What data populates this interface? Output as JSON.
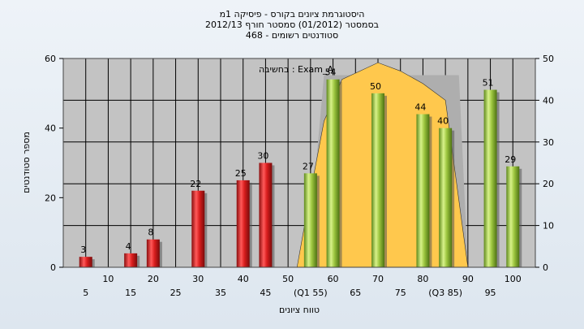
{
  "chart_data": {
    "type": "bar",
    "title_lines": [
      "היסטוגרמת ציונים בקורס - פיסיקה 1מ",
      "בסמסטר  (01/2012)  סמסטר חורף 2012/13",
      "סטודנטים רשומים - 468"
    ],
    "xlabel": "טווח ציונים",
    "ylabel": "מספר סטודנטים",
    "y_left_lim": [
      0,
      60
    ],
    "y_left_ticks": [
      0,
      20,
      40,
      60
    ],
    "y_right_lim": [
      0,
      50
    ],
    "y_right_ticks": [
      0,
      10,
      20,
      30,
      40,
      50
    ],
    "x_lim": [
      0,
      105
    ],
    "x_ticks_row1": [
      {
        "x": 10,
        "label": "10"
      },
      {
        "x": 20,
        "label": "20"
      },
      {
        "x": 30,
        "label": "30"
      },
      {
        "x": 40,
        "label": "40"
      },
      {
        "x": 50,
        "label": "50"
      },
      {
        "x": 60,
        "label": "60"
      },
      {
        "x": 70,
        "label": "70"
      },
      {
        "x": 80,
        "label": "80"
      },
      {
        "x": 90,
        "label": "90"
      },
      {
        "x": 100,
        "label": "100"
      }
    ],
    "x_ticks_row2": [
      {
        "x": 5,
        "label": "5"
      },
      {
        "x": 15,
        "label": "15"
      },
      {
        "x": 25,
        "label": "25"
      },
      {
        "x": 35,
        "label": "35"
      },
      {
        "x": 45,
        "label": "45"
      },
      {
        "x": 55,
        "label": "(Q1 55)"
      },
      {
        "x": 65,
        "label": "65"
      },
      {
        "x": 75,
        "label": "75"
      },
      {
        "x": 85,
        "label": "(Q3 85)"
      },
      {
        "x": 95,
        "label": "95"
      }
    ],
    "bars": [
      {
        "x": 5,
        "value": 3,
        "color": "red"
      },
      {
        "x": 15,
        "value": 4,
        "color": "red"
      },
      {
        "x": 20,
        "value": 8,
        "color": "red"
      },
      {
        "x": 30,
        "value": 22,
        "color": "red"
      },
      {
        "x": 40,
        "value": 25,
        "color": "red"
      },
      {
        "x": 45,
        "value": 30,
        "color": "red"
      },
      {
        "x": 55,
        "value": 27,
        "color": "green"
      },
      {
        "x": 60,
        "value": 54,
        "color": "green"
      },
      {
        "x": 70,
        "value": 50,
        "color": "green"
      },
      {
        "x": 80,
        "value": 44,
        "color": "green"
      },
      {
        "x": 85,
        "value": 40,
        "color": "green"
      },
      {
        "x": 95,
        "value": 51,
        "color": "green"
      },
      {
        "x": 100,
        "value": 29,
        "color": "green"
      }
    ],
    "distribution_curve": {
      "axis": "right",
      "points": [
        [
          52,
          0
        ],
        [
          55,
          18
        ],
        [
          58,
          35
        ],
        [
          62,
          45
        ],
        [
          70,
          49
        ],
        [
          75,
          47
        ],
        [
          80,
          44
        ],
        [
          85,
          40
        ],
        [
          90,
          0
        ]
      ]
    },
    "annotation": "בחשיבה : Exam_A",
    "grid": true,
    "colors": {
      "plot_bg": "#c3c3c3",
      "grid": "#000000",
      "red_bar": "#d91e1e",
      "green_bar": "#9dc63f",
      "curve_fill": "#ffc84d",
      "band": "#aeaeae"
    }
  }
}
